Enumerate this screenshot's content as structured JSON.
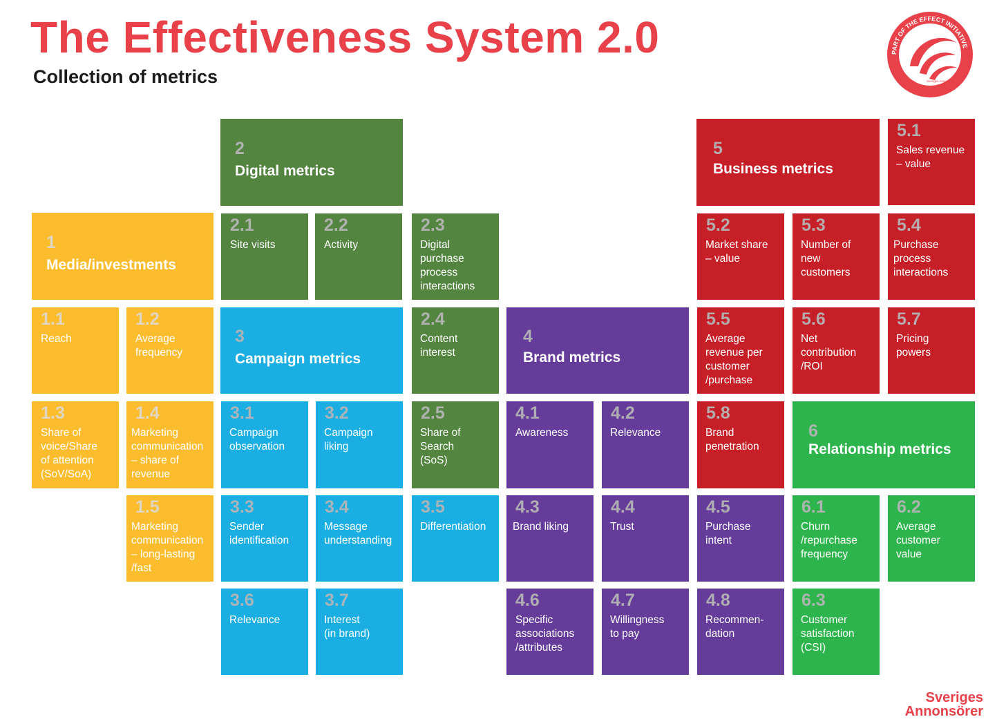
{
  "header": {
    "title": "The Effectiveness System 2.0",
    "subtitle": "Collection of metrics"
  },
  "logo": {
    "badge_text": "PART OF THE EFFECT INITIATIVE",
    "badge_small_text": "Sveriges Annonsörer",
    "line1": "Sveriges",
    "line2": "Annonsörer"
  },
  "colors": {
    "title": "#e8414a",
    "media": "#fbbd2e",
    "digital": "#538540",
    "campaign": "#1aaee3",
    "brand": "#653c99",
    "business": "#c61f28",
    "relationship": "#2eb44d"
  },
  "tiles": {
    "g1": {
      "num": "1",
      "label": "Media/investments"
    },
    "t11": {
      "num": "1.1",
      "label": "Reach"
    },
    "t12": {
      "num": "1.2",
      "label": "Average\nfrequency"
    },
    "t13": {
      "num": "1.3",
      "label": "Share of\nvoice/Share\nof attention\n(SoV/SoA)"
    },
    "t14": {
      "num": "1.4",
      "label": "Marketing\ncommunication\n– share of\nrevenue"
    },
    "t15": {
      "num": "1.5",
      "label": "Marketing\ncommunication\n– long-lasting\n/fast"
    },
    "g2": {
      "num": "2",
      "label": "Digital metrics"
    },
    "t21": {
      "num": "2.1",
      "label": "Site visits"
    },
    "t22": {
      "num": "2.2",
      "label": "Activity"
    },
    "t23": {
      "num": "2.3",
      "label": "Digital\npurchase\nprocess\ninteractions"
    },
    "t24": {
      "num": "2.4",
      "label": "Content\ninterest"
    },
    "t25": {
      "num": "2.5",
      "label": "Share of\nSearch\n(SoS)"
    },
    "g3": {
      "num": "3",
      "label": "Campaign metrics"
    },
    "t31": {
      "num": "3.1",
      "label": "Campaign\nobservation"
    },
    "t32": {
      "num": "3.2",
      "label": "Campaign\nliking"
    },
    "t33": {
      "num": "3.3",
      "label": "Sender\nidentification"
    },
    "t34": {
      "num": "3.4",
      "label": "Message\nunderstanding"
    },
    "t35": {
      "num": "3.5",
      "label": "Differentiation"
    },
    "t36": {
      "num": "3.6",
      "label": "Relevance"
    },
    "t37": {
      "num": "3.7",
      "label": "Interest\n(in brand)"
    },
    "g4": {
      "num": "4",
      "label": "Brand metrics"
    },
    "t41": {
      "num": "4.1",
      "label": "Awareness"
    },
    "t42": {
      "num": "4.2",
      "label": "Relevance"
    },
    "t43": {
      "num": "4.3",
      "label": "Brand liking"
    },
    "t44": {
      "num": "4.4",
      "label": "Trust"
    },
    "t45": {
      "num": "4.5",
      "label": "Purchase\nintent"
    },
    "t46": {
      "num": "4.6",
      "label": "Specific\nassociations\n/attributes"
    },
    "t47": {
      "num": "4.7",
      "label": "Willingness\nto pay"
    },
    "t48": {
      "num": "4.8",
      "label": "Recommen-\ndation"
    },
    "g5": {
      "num": "5",
      "label": "Business metrics"
    },
    "t51": {
      "num": "5.1",
      "label": "Sales revenue\n– value"
    },
    "t52": {
      "num": "5.2",
      "label": "Market share\n– value"
    },
    "t53": {
      "num": "5.3",
      "label": "Number of\nnew\ncustomers"
    },
    "t54": {
      "num": "5.4",
      "label": "Purchase\nprocess\ninteractions"
    },
    "t55": {
      "num": "5.5",
      "label": "Average\nrevenue per\ncustomer\n/purchase"
    },
    "t56": {
      "num": "5.6",
      "label": "Net\ncontribution\n/ROI"
    },
    "t57": {
      "num": "5.7",
      "label": "Pricing\npowers"
    },
    "t58": {
      "num": "5.8",
      "label": "Brand\npenetration"
    },
    "g6": {
      "num": "6",
      "label": "Relationship metrics"
    },
    "t61": {
      "num": "6.1",
      "label": "Churn\n/repurchase\nfrequency"
    },
    "t62": {
      "num": "6.2",
      "label": "Average\ncustomer\nvalue"
    },
    "t63": {
      "num": "6.3",
      "label": "Customer\nsatisfaction\n(CSI)"
    }
  }
}
